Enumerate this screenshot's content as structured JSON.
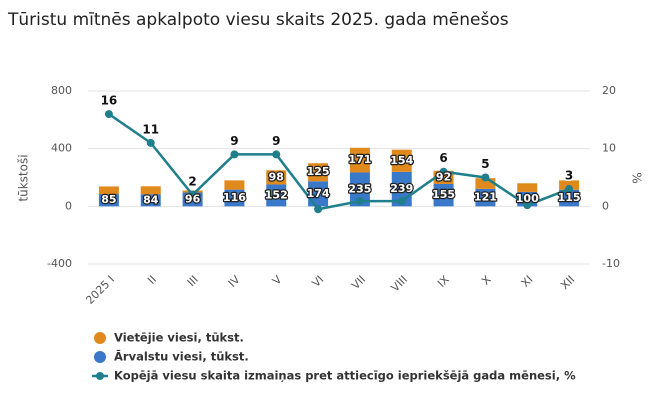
{
  "chart_data": {
    "type": "stacked-bar-line",
    "title": "Tūristu mītnēs apkalpoto viesu skaits 2025. gada mēnešos",
    "y_label": "tūkstoši",
    "y2_label": "%",
    "categories": [
      "2025 I",
      "II",
      "III",
      "IV",
      "V",
      "VI",
      "VII",
      "VIII",
      "IX",
      "X",
      "XI",
      "XII"
    ],
    "ylim": [
      -400,
      800
    ],
    "yticks": [
      -400,
      0,
      400,
      800
    ],
    "y2lim": [
      -10,
      20
    ],
    "y2ticks": [
      -10,
      0,
      10,
      20
    ],
    "grid": true,
    "series": [
      {
        "name": "Vietējie viesi, tūkst.",
        "color": "#e08a1e",
        "kind": "bar",
        "values": [
          53,
          55,
          14,
          64,
          98,
          125,
          171,
          154,
          92,
          74,
          60,
          65
        ],
        "value_labels": [
          null,
          null,
          null,
          null,
          "98",
          "125",
          "171",
          "154",
          "92",
          null,
          null,
          null
        ]
      },
      {
        "name": "Ārvalstu viesi, tūkst.",
        "color": "#3a78c9",
        "kind": "bar",
        "values": [
          85,
          84,
          96,
          116,
          152,
          174,
          235,
          239,
          155,
          121,
          100,
          115
        ],
        "value_labels": [
          "85",
          "84",
          "96",
          "116",
          "152",
          "174",
          "235",
          "239",
          "155",
          "121",
          "100",
          "115"
        ]
      },
      {
        "name": "Kopējā viesu skaita izmaiņas pret attiecīgo iepriekšējā gada mēnesi, %",
        "color": "#1f7f8c",
        "kind": "line",
        "axis": "y2",
        "values": [
          16,
          11,
          2,
          9,
          9,
          -0.5,
          0.9,
          0.9,
          6,
          5,
          0.2,
          3
        ],
        "value_labels": [
          "16",
          "11",
          "2",
          "9",
          "9",
          null,
          null,
          null,
          "6",
          "5",
          null,
          "3"
        ]
      }
    ]
  }
}
